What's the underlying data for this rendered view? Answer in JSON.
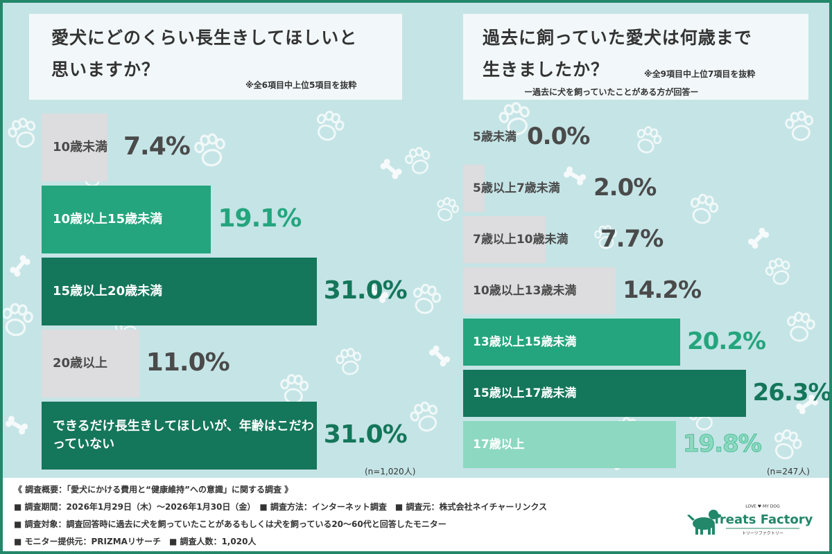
{
  "left_panel": {
    "title_line1": "愛犬にどのくらい長生きしてほしいと",
    "title_line2": "思いますか？",
    "note": "※全6項目中上位5項目を抜粋",
    "n_note": "(n=1,020人)"
  },
  "right_panel": {
    "title_line1": "過去に飼っていた愛犬は何歳まで",
    "title_line2": "生きましたか？",
    "note": "※全9項目中上位7項目を抜粋",
    "subnote": "ー過去に犬を飼っていたことがある方が回答ー",
    "n_note": "(n=247人)"
  },
  "chart_data": [
    {
      "type": "bar",
      "orientation": "horizontal",
      "title": "愛犬にどのくらい長生きしてほしいと思いますか？",
      "categories": [
        "10歳未満",
        "10歳以上15歳未満",
        "15歳以上20歳未満",
        "20歳以上",
        "できるだけ長生きしてほしいが、年齢はこだわっていない"
      ],
      "values": [
        7.4,
        19.1,
        31.0,
        11.0,
        31.0
      ],
      "value_labels": [
        "7.4%",
        "19.1%",
        "31.0%",
        "11.0%",
        "31.0%"
      ],
      "unit": "%",
      "colors": [
        "#dddcde",
        "#24a57d",
        "#14765a",
        "#dddcde",
        "#14765a"
      ]
    },
    {
      "type": "bar",
      "orientation": "horizontal",
      "title": "過去に飼っていた愛犬は何歳まで生きましたか？",
      "categories": [
        "5歳未満",
        "5歳以上7歳未満",
        "7歳以上10歳未満",
        "10歳以上13歳未満",
        "13歳以上15歳未満",
        "15歳以上17歳未満",
        "17歳以上"
      ],
      "values": [
        0.0,
        2.0,
        7.7,
        14.2,
        20.2,
        26.3,
        19.8
      ],
      "value_labels": [
        "0.0%",
        "2.0%",
        "7.7%",
        "14.2%",
        "20.2%",
        "26.3%",
        "19.8%"
      ],
      "unit": "%",
      "colors": [
        "#dddcde",
        "#dddcde",
        "#dddcde",
        "#dddcde",
        "#24a57d",
        "#14765a",
        "#8dd8c0"
      ]
    }
  ],
  "footer": {
    "line1": "《 調査概要：「愛犬にかける費用と“健康維持”への意識」に関する調査 》",
    "line2": "■ 調査期間：2026年1月29日（木）～2026年1月30日（金）　■ 調査方法：インターネット調査　■ 調査元：株式会社ネイチャーリンクス",
    "line3": "■ 調査対象：調査回答時に過去に犬を飼っていたことがあるもしくは犬を飼っている20～60代と回答したモニター",
    "line4": "■ モニター提供元：PRIZMAリサーチ　■ 調査人数：1,020人"
  },
  "logo": {
    "tagline": "LOVE ♥ MY DOG",
    "name": "Treats Factory",
    "kana": "トリーツファクトリー"
  }
}
